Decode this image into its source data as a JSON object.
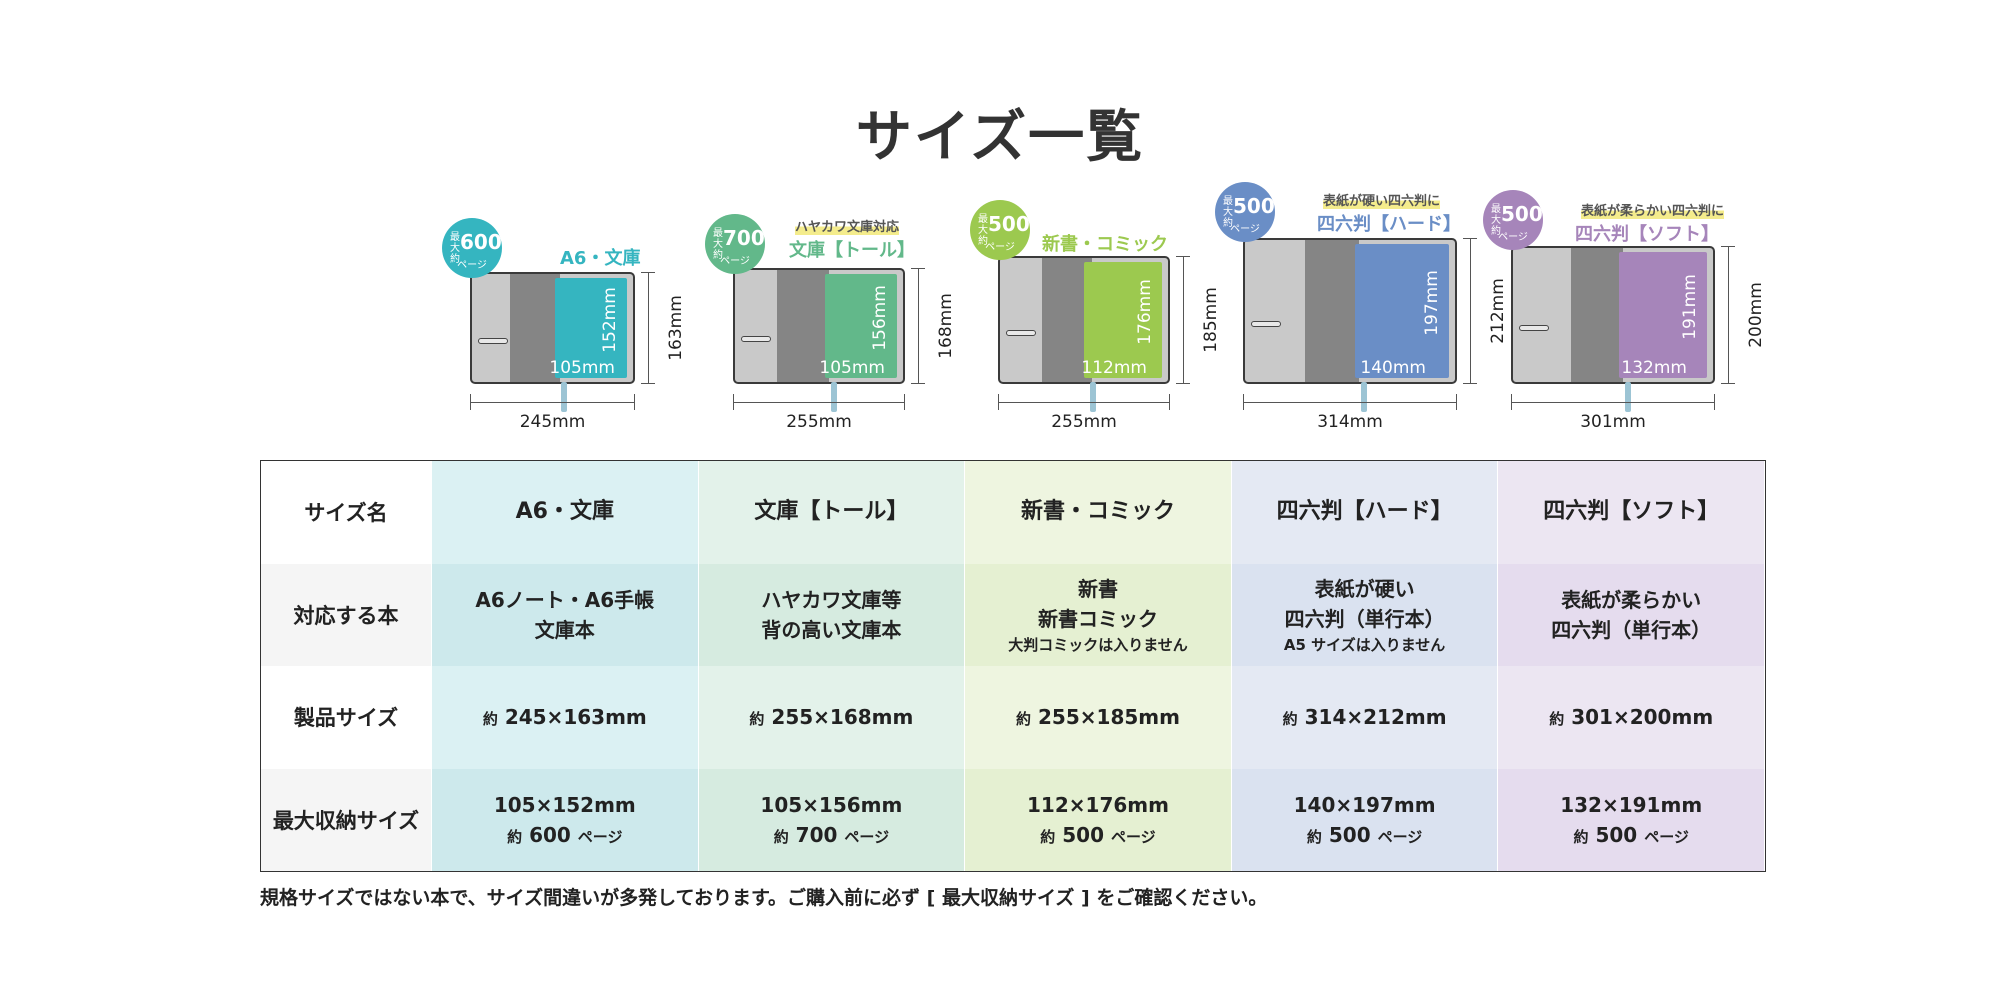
{
  "title": "サイズ一覧",
  "products": [
    {
      "name": "A6・文庫",
      "sub": "",
      "color": "#35b5c0",
      "pages_badge": {
        "prefix": "最大 約",
        "num": "600",
        "unit": "ページ"
      },
      "inner_w": "105mm",
      "inner_h": "152mm",
      "outer_w": "245mm",
      "outer_h": "163mm",
      "books": [
        "A6ノート・A6手帳",
        "文庫本"
      ],
      "books_note": "",
      "product_size": {
        "approx": "約",
        "value": "245×163mm"
      },
      "max_size": "105×152mm",
      "max_pages": {
        "approx": "約",
        "num": "600",
        "unit": "ページ"
      },
      "bg_light": "#dbf1f3",
      "bg_dark": "#cde9ec"
    },
    {
      "name": "文庫【トール】",
      "sub": "ハヤカワ文庫対応",
      "color": "#62b88a",
      "pages_badge": {
        "prefix": "最大 約",
        "num": "700",
        "unit": "ページ"
      },
      "inner_w": "105mm",
      "inner_h": "156mm",
      "outer_w": "255mm",
      "outer_h": "168mm",
      "books": [
        "ハヤカワ文庫等",
        "背の高い文庫本"
      ],
      "books_note": "",
      "product_size": {
        "approx": "約",
        "value": "255×168mm"
      },
      "max_size": "105×156mm",
      "max_pages": {
        "approx": "約",
        "num": "700",
        "unit": "ページ"
      },
      "bg_light": "#e3f2ea",
      "bg_dark": "#d6ebe0"
    },
    {
      "name": "新書・コミック",
      "sub": "",
      "color": "#9cc94f",
      "pages_badge": {
        "prefix": "最大 約",
        "num": "500",
        "unit": "ページ"
      },
      "inner_w": "112mm",
      "inner_h": "176mm",
      "outer_w": "255mm",
      "outer_h": "185mm",
      "books": [
        "新書",
        "新書コミック"
      ],
      "books_note": "大判コミックは入りません",
      "product_size": {
        "approx": "約",
        "value": "255×185mm"
      },
      "max_size": "112×176mm",
      "max_pages": {
        "approx": "約",
        "num": "500",
        "unit": "ページ"
      },
      "bg_light": "#eef5e0",
      "bg_dark": "#e5f0d2"
    },
    {
      "name": "四六判【ハード】",
      "sub": "表紙が硬い四六判に",
      "color": "#6a8ec6",
      "pages_badge": {
        "prefix": "最大 約",
        "num": "500",
        "unit": "ページ"
      },
      "inner_w": "140mm",
      "inner_h": "197mm",
      "outer_w": "314mm",
      "outer_h": "212mm",
      "books": [
        "表紙が硬い",
        "四六判（単行本）"
      ],
      "books_note": "A5 サイズは入りません",
      "product_size": {
        "approx": "約",
        "value": "314×212mm"
      },
      "max_size": "140×197mm",
      "max_pages": {
        "approx": "約",
        "num": "500",
        "unit": "ページ"
      },
      "bg_light": "#e4e9f3",
      "bg_dark": "#dae2f0"
    },
    {
      "name": "四六判【ソフト】",
      "sub": "表紙が柔らかい四六判に",
      "color": "#a685ba",
      "pages_badge": {
        "prefix": "最大 約",
        "num": "500",
        "unit": "ページ"
      },
      "inner_w": "132mm",
      "inner_h": "191mm",
      "outer_w": "301mm",
      "outer_h": "200mm",
      "books": [
        "表紙が柔らかい",
        "四六判（単行本）"
      ],
      "books_note": "",
      "product_size": {
        "approx": "約",
        "value": "301×200mm"
      },
      "max_size": "132×191mm",
      "max_pages": {
        "approx": "約",
        "num": "500",
        "unit": "ページ"
      },
      "bg_light": "#ece6f2",
      "bg_dark": "#e5dcee"
    }
  ],
  "row_labels": {
    "size_name": "サイズ名",
    "books": "対応する本",
    "product_size": "製品サイズ",
    "max_size": "最大収納サイズ"
  },
  "footnote": "規格サイズではない本で、サイズ間違いが多発しております。ご購入前に必ず [ 最大収納サイズ ] をご確認ください。"
}
